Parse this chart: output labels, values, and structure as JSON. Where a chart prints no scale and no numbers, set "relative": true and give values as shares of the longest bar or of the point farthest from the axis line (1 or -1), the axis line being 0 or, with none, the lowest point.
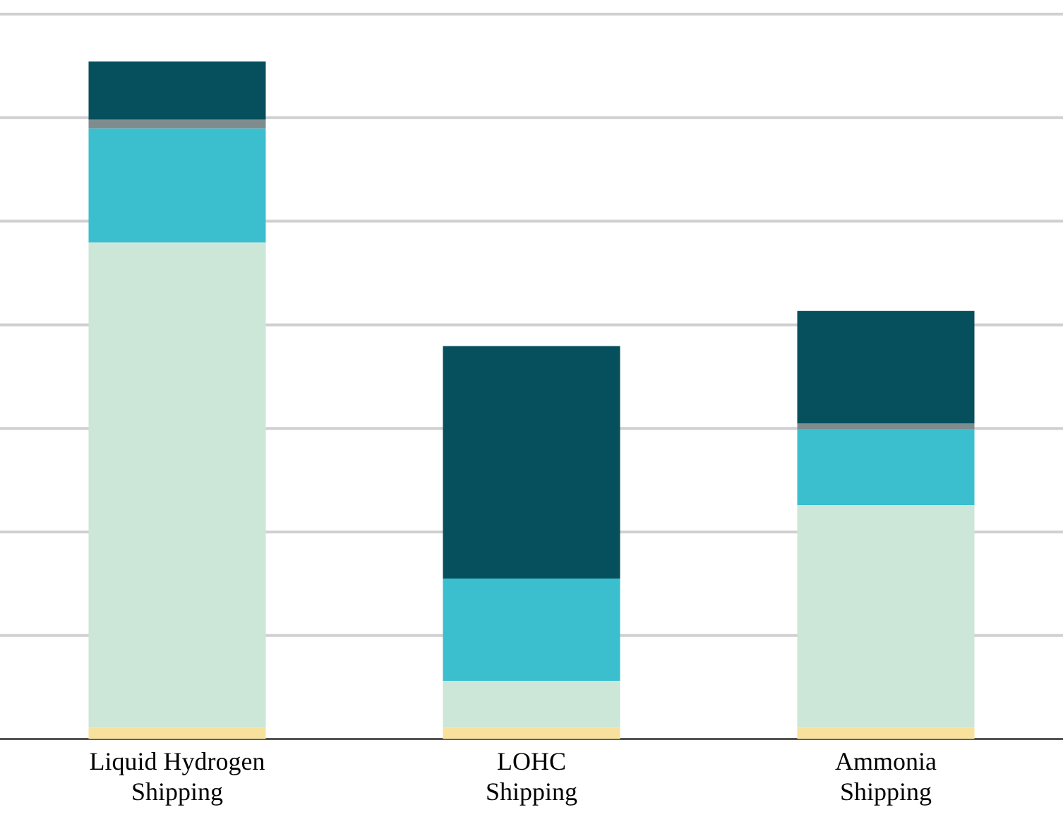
{
  "chart_data": {
    "type": "bar",
    "stacked": true,
    "relative": true,
    "grid": "y",
    "legend": false,
    "categories": [
      "Liquid Hydrogen Shipping",
      "LOHC Shipping",
      "Ammonia Shipping"
    ],
    "series": [
      {
        "color": "#f7e19c",
        "values": [
          0.017,
          0.017,
          0.017
        ]
      },
      {
        "color": "#cce6d8",
        "values": [
          0.716,
          0.069,
          0.328
        ]
      },
      {
        "color": "#3bbfcf",
        "values": [
          0.168,
          0.151,
          0.112
        ]
      },
      {
        "color": "#7f8c8d",
        "values": [
          0.013,
          0,
          0.009
        ]
      },
      {
        "color": "#064f5d",
        "values": [
          0.086,
          0.343,
          0.166
        ]
      }
    ]
  }
}
